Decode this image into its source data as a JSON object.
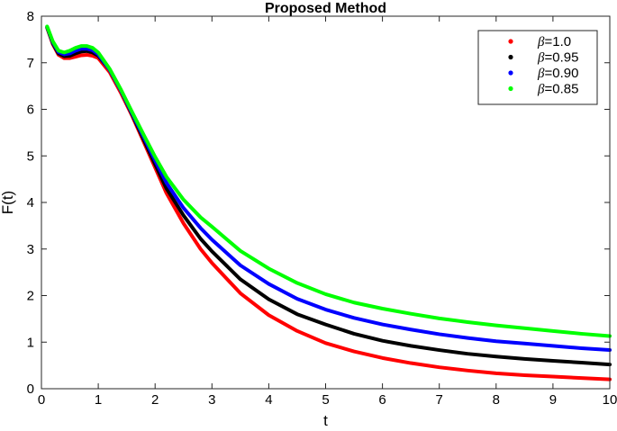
{
  "chart_data": {
    "type": "line",
    "title": "Proposed Method",
    "xlabel": "t",
    "ylabel": "F(t)",
    "xlim": [
      0,
      10
    ],
    "ylim": [
      0,
      8
    ],
    "xticks": [
      "0",
      "1",
      "2",
      "3",
      "4",
      "5",
      "6",
      "7",
      "8",
      "9",
      "10"
    ],
    "yticks": [
      "0",
      "1",
      "2",
      "3",
      "4",
      "5",
      "6",
      "7",
      "8"
    ],
    "grid": false,
    "legend_position": "top-right",
    "x": [
      0.1,
      0.2,
      0.3,
      0.4,
      0.5,
      0.6,
      0.7,
      0.8,
      0.9,
      1.0,
      1.2,
      1.4,
      1.6,
      1.8,
      2.0,
      2.2,
      2.5,
      2.8,
      3.0,
      3.5,
      4.0,
      4.5,
      5.0,
      5.5,
      6.0,
      6.5,
      7.0,
      7.5,
      8.0,
      8.5,
      9.0,
      9.5,
      10.0
    ],
    "series": [
      {
        "name": "β=1.0",
        "symbol": "β",
        "value_label": "=1.0",
        "color": "#ff0000",
        "values": [
          7.75,
          7.4,
          7.17,
          7.1,
          7.1,
          7.13,
          7.16,
          7.17,
          7.15,
          7.1,
          6.8,
          6.35,
          5.85,
          5.3,
          4.75,
          4.2,
          3.55,
          3.0,
          2.7,
          2.05,
          1.58,
          1.24,
          0.98,
          0.8,
          0.66,
          0.55,
          0.46,
          0.39,
          0.33,
          0.29,
          0.26,
          0.23,
          0.2
        ]
      },
      {
        "name": "β=0.95",
        "symbol": "β",
        "value_label": "=0.95",
        "color": "#000000",
        "values": [
          7.76,
          7.42,
          7.2,
          7.14,
          7.15,
          7.2,
          7.24,
          7.25,
          7.22,
          7.15,
          6.85,
          6.4,
          5.88,
          5.35,
          4.82,
          4.3,
          3.72,
          3.22,
          2.95,
          2.35,
          1.92,
          1.6,
          1.38,
          1.18,
          1.03,
          0.92,
          0.83,
          0.75,
          0.69,
          0.64,
          0.6,
          0.56,
          0.52
        ]
      },
      {
        "name": "β=0.90",
        "symbol": "β",
        "value_label": "=0.90",
        "color": "#0000ff",
        "values": [
          7.77,
          7.44,
          7.23,
          7.18,
          7.2,
          7.26,
          7.3,
          7.3,
          7.27,
          7.18,
          6.85,
          6.4,
          5.9,
          5.4,
          4.9,
          4.42,
          3.88,
          3.45,
          3.2,
          2.65,
          2.25,
          1.93,
          1.7,
          1.52,
          1.38,
          1.27,
          1.17,
          1.09,
          1.02,
          0.97,
          0.92,
          0.87,
          0.83
        ]
      },
      {
        "name": "β=0.85",
        "symbol": "β",
        "value_label": "=0.85",
        "color": "#00ff00",
        "values": [
          7.78,
          7.46,
          7.26,
          7.22,
          7.26,
          7.32,
          7.36,
          7.36,
          7.32,
          7.22,
          6.87,
          6.42,
          5.93,
          5.45,
          4.98,
          4.55,
          4.06,
          3.68,
          3.48,
          2.96,
          2.58,
          2.27,
          2.03,
          1.85,
          1.72,
          1.61,
          1.51,
          1.43,
          1.36,
          1.3,
          1.24,
          1.18,
          1.13
        ]
      }
    ]
  }
}
